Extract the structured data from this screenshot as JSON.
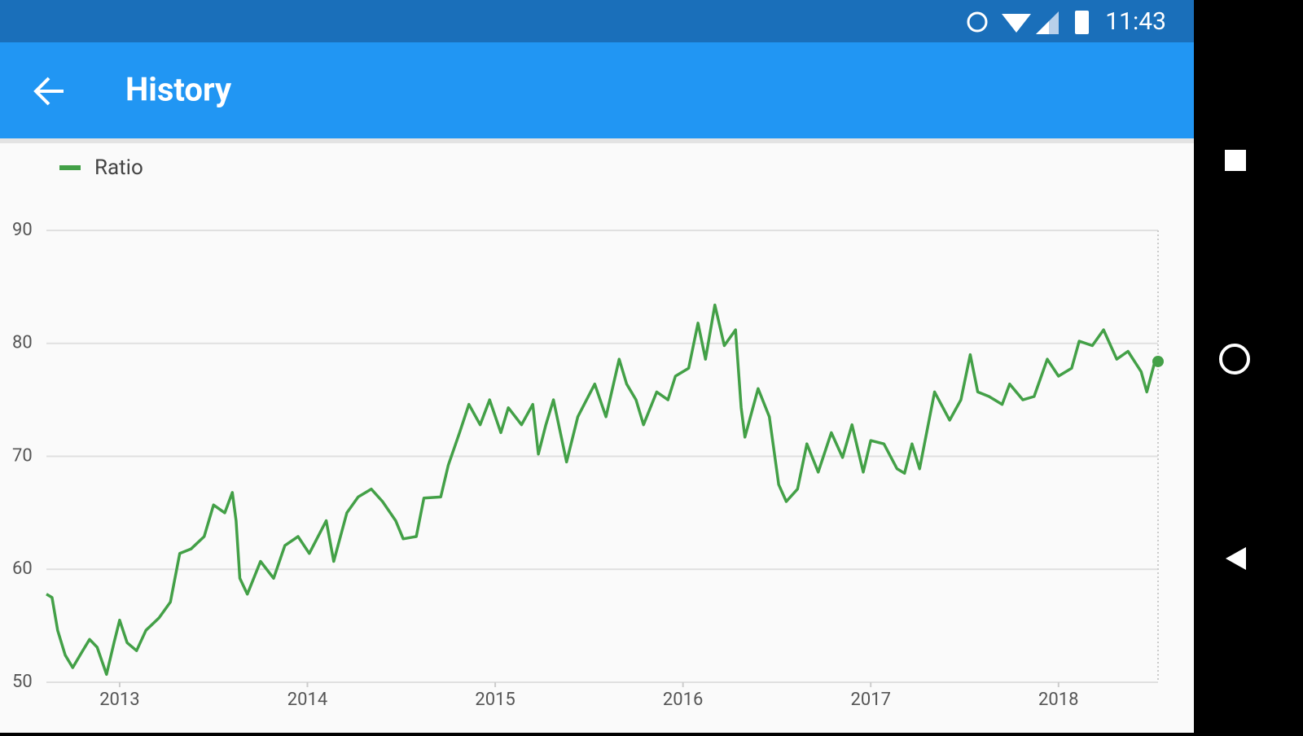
{
  "status_bar": {
    "time": "11:43"
  },
  "app_bar": {
    "title": "History"
  },
  "chart_data": {
    "type": "line",
    "x": [
      2012.61,
      2012.64,
      2012.67,
      2012.71,
      2012.75,
      2012.8,
      2012.84,
      2012.88,
      2012.93,
      2012.97,
      2013.0,
      2013.04,
      2013.09,
      2013.14,
      2013.21,
      2013.27,
      2013.32,
      2013.38,
      2013.45,
      2013.5,
      2013.56,
      2013.6,
      2013.62,
      2013.64,
      2013.68,
      2013.75,
      2013.82,
      2013.88,
      2013.95,
      2014.01,
      2014.1,
      2014.14,
      2014.21,
      2014.27,
      2014.34,
      2014.4,
      2014.47,
      2014.51,
      2014.58,
      2014.62,
      2014.71,
      2014.75,
      2014.81,
      2014.86,
      2014.92,
      2014.97,
      2015.03,
      2015.07,
      2015.14,
      2015.2,
      2015.23,
      2015.27,
      2015.31,
      2015.38,
      2015.44,
      2015.53,
      2015.59,
      2015.66,
      2015.7,
      2015.75,
      2015.79,
      2015.86,
      2015.92,
      2015.96,
      2016.03,
      2016.08,
      2016.12,
      2016.17,
      2016.22,
      2016.28,
      2016.31,
      2016.33,
      2016.4,
      2016.46,
      2016.51,
      2016.55,
      2016.61,
      2016.66,
      2016.72,
      2016.79,
      2016.85,
      2016.9,
      2016.96,
      2017.0,
      2017.07,
      2017.14,
      2017.18,
      2017.22,
      2017.26,
      2017.34,
      2017.42,
      2017.48,
      2017.53,
      2017.57,
      2017.63,
      2017.7,
      2017.74,
      2017.81,
      2017.87,
      2017.94,
      2018.0,
      2018.07,
      2018.11,
      2018.18,
      2018.24,
      2018.31,
      2018.37,
      2018.44,
      2018.47,
      2018.51,
      2018.53
    ],
    "series": [
      {
        "name": "Ratio",
        "color": "#43a047",
        "values": [
          57.8,
          57.5,
          54.6,
          52.4,
          51.3,
          52.7,
          53.8,
          53.1,
          50.7,
          53.5,
          55.5,
          53.5,
          52.8,
          54.6,
          55.7,
          57.1,
          61.4,
          61.8,
          62.9,
          65.7,
          65.0,
          66.8,
          64.3,
          59.2,
          57.8,
          60.7,
          59.2,
          62.1,
          62.9,
          61.4,
          64.3,
          60.7,
          65.0,
          66.4,
          67.1,
          66.0,
          64.3,
          62.7,
          62.9,
          66.3,
          66.4,
          69.2,
          72.1,
          74.6,
          72.8,
          75.0,
          72.1,
          74.3,
          72.8,
          74.6,
          70.2,
          72.8,
          75.0,
          69.5,
          73.5,
          76.4,
          73.5,
          78.6,
          76.4,
          75.0,
          72.8,
          75.7,
          75.0,
          77.1,
          77.8,
          81.8,
          78.6,
          83.4,
          79.8,
          81.2,
          74.3,
          71.7,
          76.0,
          73.5,
          67.5,
          66.0,
          67.1,
          71.1,
          68.6,
          72.1,
          69.9,
          72.8,
          68.6,
          71.4,
          71.1,
          68.9,
          68.5,
          71.1,
          68.9,
          75.7,
          73.2,
          75.0,
          79.0,
          75.7,
          75.3,
          74.6,
          76.4,
          75.0,
          75.3,
          78.6,
          77.1,
          77.8,
          80.2,
          79.8,
          81.2,
          78.6,
          79.3,
          77.5,
          75.7,
          78.2,
          78.4
        ]
      }
    ],
    "xlim": [
      2012.61,
      2018.53
    ],
    "xticks": [
      2013,
      2014,
      2015,
      2016,
      2017,
      2018
    ],
    "ylim": [
      50,
      90
    ],
    "yticks": [
      50,
      60,
      70,
      80,
      90
    ],
    "grid": true
  }
}
